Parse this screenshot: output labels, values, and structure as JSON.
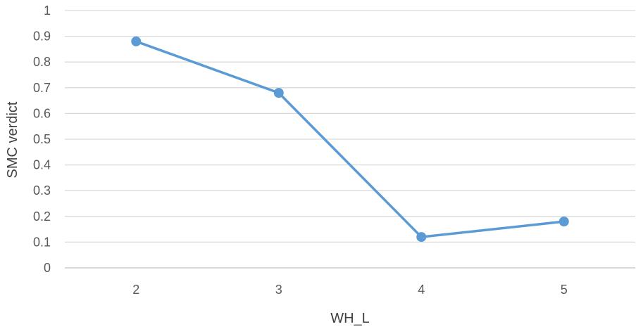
{
  "chart_data": {
    "type": "line",
    "title": "",
    "xlabel": "WH_L",
    "ylabel": "SMC verdict",
    "x": [
      2,
      3,
      4,
      5
    ],
    "series": [
      {
        "values": [
          0.88,
          0.68,
          0.12,
          0.18
        ]
      }
    ],
    "ylim": [
      0,
      1
    ],
    "yticks": [
      "0",
      "0.1",
      "0.2",
      "0.3",
      "0.4",
      "0.5",
      "0.6",
      "0.7",
      "0.8",
      "0.9",
      "1"
    ],
    "grid": "horizontal",
    "legend": "none",
    "colors": {
      "series": "#5b9bd5"
    }
  }
}
